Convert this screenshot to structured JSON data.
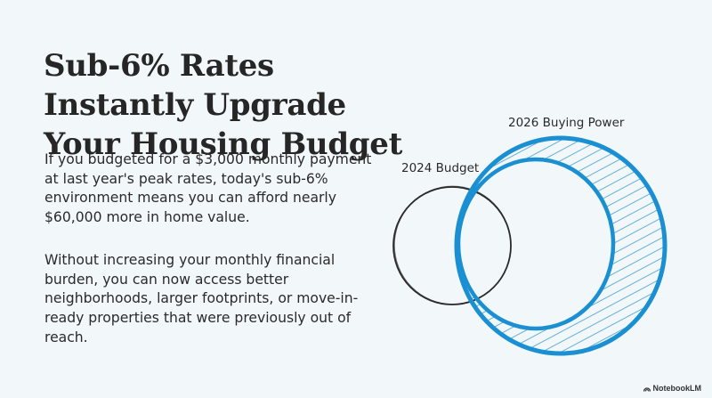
{
  "slide": {
    "title": "Sub-6% Rates Instantly Upgrade Your Housing Budget",
    "paragraphs": [
      "If you budgeted for a $3,000 monthly payment at last year's peak rates, today's sub-6% environment means you can afford nearly $60,000 more in home value.",
      "Without increasing your monthly financial burden, you can now access better neighborhoods, larger footprints, or move-in-ready properties that were previously out of reach."
    ]
  },
  "diagram": {
    "labels": {
      "budget_2024": "2024 Budget",
      "buying_power_2026": "2026 Buying Power"
    },
    "colors": {
      "budget_circle": "#2b2b2b",
      "buying_power": "#1a8fd1",
      "hatch": "#4aa3d6"
    }
  },
  "watermark": {
    "icon": "notebooklm-logo-icon",
    "text": "NotebookLM"
  }
}
